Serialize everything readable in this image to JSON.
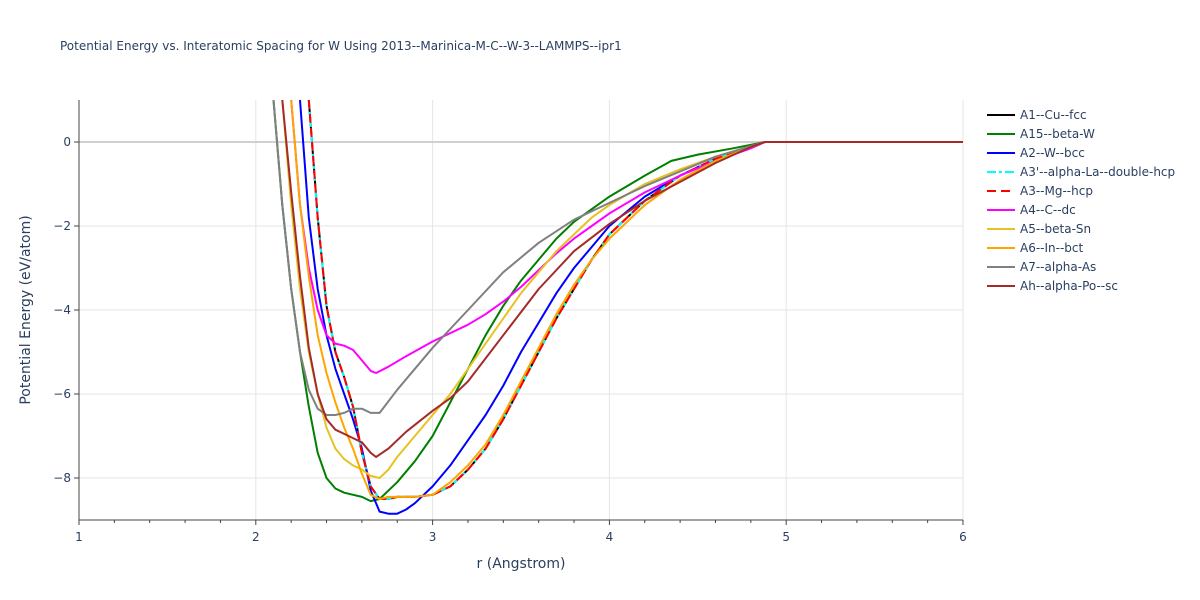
{
  "chart_data": {
    "type": "line",
    "title": "Potential Energy vs. Interatomic Spacing for W Using 2013--Marinica-M-C--W-3--LAMMPS--ipr1",
    "xlabel": "r (Angstrom)",
    "ylabel": "Potential Energy (eV/atom)",
    "xlim": [
      1,
      6
    ],
    "ylim": [
      -9,
      1
    ],
    "xticks": [
      1,
      2,
      3,
      4,
      5,
      6
    ],
    "yticks": [
      0,
      -2,
      -4,
      -6,
      -8
    ],
    "xtick_labels": [
      "1",
      "2",
      "3",
      "4",
      "5",
      "6"
    ],
    "ytick_labels": [
      "0",
      "−2",
      "−4",
      "−6",
      "−8"
    ],
    "grid": true,
    "legend_position": "right",
    "series": [
      {
        "name": "A1--Cu--fcc",
        "color": "#000000",
        "dash": "solid",
        "x": [
          2.3,
          2.35,
          2.4,
          2.45,
          2.5,
          2.55,
          2.6,
          2.65,
          2.7,
          2.75,
          2.8,
          2.9,
          3.0,
          3.1,
          3.2,
          3.3,
          3.4,
          3.5,
          3.6,
          3.7,
          3.8,
          3.9,
          4.0,
          4.2,
          4.4,
          4.6,
          4.8,
          4.88,
          5.0,
          5.5,
          6.0
        ],
        "y": [
          1.0,
          -1.8,
          -3.9,
          -5.0,
          -5.6,
          -6.3,
          -7.4,
          -8.2,
          -8.5,
          -8.5,
          -8.45,
          -8.45,
          -8.4,
          -8.2,
          -7.8,
          -7.3,
          -6.6,
          -5.8,
          -5.0,
          -4.2,
          -3.5,
          -2.8,
          -2.2,
          -1.4,
          -0.8,
          -0.4,
          -0.1,
          0.0,
          0.0,
          0.0,
          0.0
        ]
      },
      {
        "name": "A15--beta-W",
        "color": "#008000",
        "dash": "solid",
        "x": [
          2.1,
          2.15,
          2.2,
          2.25,
          2.3,
          2.35,
          2.4,
          2.45,
          2.5,
          2.6,
          2.65,
          2.7,
          2.8,
          2.9,
          3.0,
          3.1,
          3.2,
          3.3,
          3.4,
          3.5,
          3.6,
          3.7,
          3.8,
          3.9,
          4.0,
          4.1,
          4.2,
          4.35,
          4.5,
          4.7,
          4.88,
          5.0,
          5.5,
          6.0
        ],
        "y": [
          1.0,
          -1.5,
          -3.5,
          -5.0,
          -6.3,
          -7.4,
          -8.0,
          -8.25,
          -8.35,
          -8.45,
          -8.55,
          -8.5,
          -8.1,
          -7.6,
          -7.0,
          -6.2,
          -5.4,
          -4.6,
          -3.9,
          -3.3,
          -2.8,
          -2.3,
          -1.9,
          -1.6,
          -1.3,
          -1.05,
          -0.8,
          -0.45,
          -0.3,
          -0.15,
          0.0,
          0.0,
          0.0,
          0.0
        ]
      },
      {
        "name": "A2--W--bcc",
        "color": "#0000ff",
        "dash": "solid",
        "x": [
          2.25,
          2.3,
          2.35,
          2.4,
          2.45,
          2.5,
          2.55,
          2.6,
          2.65,
          2.7,
          2.75,
          2.8,
          2.85,
          2.9,
          3.0,
          3.1,
          3.2,
          3.3,
          3.4,
          3.5,
          3.6,
          3.7,
          3.8,
          3.9,
          4.0,
          4.2,
          4.4,
          4.6,
          4.8,
          4.88,
          5.0,
          5.5,
          6.0
        ],
        "y": [
          1.0,
          -1.8,
          -3.5,
          -4.6,
          -5.4,
          -6.0,
          -6.6,
          -7.3,
          -8.3,
          -8.8,
          -8.85,
          -8.85,
          -8.75,
          -8.6,
          -8.2,
          -7.7,
          -7.1,
          -6.5,
          -5.8,
          -5.0,
          -4.3,
          -3.6,
          -3.0,
          -2.5,
          -2.0,
          -1.3,
          -0.8,
          -0.4,
          -0.1,
          0.0,
          0.0,
          0.0,
          0.0
        ]
      },
      {
        "name": "A3'--alpha-La--double-hcp",
        "color": "#00ffff",
        "dash": "dashdot",
        "x": [
          2.3,
          2.35,
          2.4,
          2.45,
          2.5,
          2.55,
          2.6,
          2.65,
          2.7,
          2.75,
          2.8,
          2.9,
          3.0,
          3.1,
          3.2,
          3.3,
          3.4,
          3.5,
          3.6,
          3.7,
          3.8,
          3.9,
          4.0,
          4.2,
          4.4,
          4.6,
          4.8,
          4.88,
          5.0,
          5.5,
          6.0
        ],
        "y": [
          1.0,
          -1.8,
          -3.9,
          -5.0,
          -5.6,
          -6.3,
          -7.4,
          -8.2,
          -8.5,
          -8.5,
          -8.45,
          -8.45,
          -8.4,
          -8.2,
          -7.8,
          -7.3,
          -6.6,
          -5.8,
          -5.0,
          -4.2,
          -3.5,
          -2.8,
          -2.2,
          -1.4,
          -0.8,
          -0.4,
          -0.1,
          0.0,
          0.0,
          0.0,
          0.0
        ]
      },
      {
        "name": "A3--Mg--hcp",
        "color": "#ff0000",
        "dash": "dash",
        "x": [
          2.3,
          2.35,
          2.4,
          2.45,
          2.5,
          2.55,
          2.6,
          2.65,
          2.7,
          2.75,
          2.8,
          2.9,
          3.0,
          3.1,
          3.2,
          3.3,
          3.4,
          3.5,
          3.6,
          3.7,
          3.8,
          3.9,
          4.0,
          4.2,
          4.4,
          4.6,
          4.8,
          4.88,
          5.0,
          5.5,
          6.0
        ],
        "y": [
          1.0,
          -1.8,
          -3.9,
          -5.0,
          -5.6,
          -6.3,
          -7.4,
          -8.2,
          -8.5,
          -8.5,
          -8.45,
          -8.45,
          -8.4,
          -8.2,
          -7.8,
          -7.3,
          -6.6,
          -5.8,
          -5.0,
          -4.2,
          -3.5,
          -2.8,
          -2.2,
          -1.4,
          -0.8,
          -0.4,
          -0.1,
          0.0,
          0.0,
          0.0,
          0.0
        ]
      },
      {
        "name": "A4--C--dc",
        "color": "#ff00ff",
        "dash": "solid",
        "x": [
          2.2,
          2.25,
          2.3,
          2.35,
          2.4,
          2.45,
          2.5,
          2.55,
          2.6,
          2.65,
          2.68,
          2.75,
          2.85,
          3.0,
          3.1,
          3.2,
          3.3,
          3.4,
          3.5,
          3.6,
          3.7,
          3.8,
          3.9,
          4.0,
          4.2,
          4.4,
          4.6,
          4.8,
          4.88,
          5.0,
          5.5,
          6.0
        ],
        "y": [
          1.0,
          -1.5,
          -3.0,
          -4.0,
          -4.6,
          -4.8,
          -4.85,
          -4.95,
          -5.2,
          -5.45,
          -5.5,
          -5.35,
          -5.1,
          -4.75,
          -4.55,
          -4.35,
          -4.1,
          -3.8,
          -3.45,
          -3.05,
          -2.65,
          -2.3,
          -2.0,
          -1.7,
          -1.2,
          -0.8,
          -0.45,
          -0.15,
          0.0,
          0.0,
          0.0,
          0.0
        ]
      },
      {
        "name": "A5--beta-Sn",
        "color": "#e6c322",
        "dash": "solid",
        "x": [
          2.15,
          2.2,
          2.25,
          2.3,
          2.35,
          2.4,
          2.45,
          2.5,
          2.55,
          2.6,
          2.65,
          2.7,
          2.75,
          2.8,
          2.9,
          3.0,
          3.1,
          3.2,
          3.3,
          3.4,
          3.5,
          3.6,
          3.7,
          3.8,
          3.9,
          4.0,
          4.2,
          4.4,
          4.6,
          4.8,
          4.88,
          5.0,
          5.5,
          6.0
        ],
        "y": [
          1.0,
          -1.5,
          -3.5,
          -5.0,
          -6.0,
          -6.8,
          -7.3,
          -7.55,
          -7.7,
          -7.8,
          -7.95,
          -8.0,
          -7.8,
          -7.5,
          -7.0,
          -6.5,
          -6.0,
          -5.4,
          -4.8,
          -4.2,
          -3.6,
          -3.1,
          -2.6,
          -2.2,
          -1.8,
          -1.5,
          -1.0,
          -0.65,
          -0.35,
          -0.1,
          0.0,
          0.0,
          0.0,
          0.0
        ]
      },
      {
        "name": "A6--In--bct",
        "color": "#ffa500",
        "dash": "solid",
        "x": [
          2.2,
          2.25,
          2.3,
          2.35,
          2.4,
          2.45,
          2.5,
          2.55,
          2.6,
          2.65,
          2.7,
          2.75,
          2.8,
          2.9,
          3.0,
          3.1,
          3.2,
          3.3,
          3.4,
          3.5,
          3.6,
          3.7,
          3.8,
          3.9,
          4.0,
          4.2,
          4.4,
          4.6,
          4.8,
          4.88,
          5.0,
          5.5,
          6.0
        ],
        "y": [
          1.0,
          -1.5,
          -3.2,
          -4.6,
          -5.5,
          -6.2,
          -6.8,
          -7.3,
          -7.9,
          -8.4,
          -8.5,
          -8.45,
          -8.45,
          -8.45,
          -8.4,
          -8.1,
          -7.7,
          -7.2,
          -6.5,
          -5.7,
          -4.9,
          -4.1,
          -3.4,
          -2.8,
          -2.3,
          -1.5,
          -0.9,
          -0.45,
          -0.12,
          0.0,
          0.0,
          0.0,
          0.0
        ]
      },
      {
        "name": "A7--alpha-As",
        "color": "#808080",
        "dash": "solid",
        "x": [
          2.1,
          2.15,
          2.2,
          2.25,
          2.3,
          2.35,
          2.4,
          2.45,
          2.5,
          2.55,
          2.6,
          2.65,
          2.7,
          2.8,
          2.9,
          3.0,
          3.2,
          3.4,
          3.6,
          3.8,
          4.0,
          4.2,
          4.4,
          4.6,
          4.8,
          4.88,
          5.0,
          5.5,
          6.0
        ],
        "y": [
          1.0,
          -1.5,
          -3.5,
          -5.0,
          -5.9,
          -6.35,
          -6.5,
          -6.5,
          -6.45,
          -6.35,
          -6.35,
          -6.45,
          -6.45,
          -5.9,
          -5.4,
          -4.9,
          -4.0,
          -3.1,
          -2.4,
          -1.85,
          -1.45,
          -1.05,
          -0.7,
          -0.35,
          -0.1,
          0.0,
          0.0,
          0.0,
          0.0
        ]
      },
      {
        "name": "Ah--alpha-Po--sc",
        "color": "#a52a2a",
        "dash": "solid",
        "x": [
          2.15,
          2.2,
          2.25,
          2.3,
          2.35,
          2.4,
          2.45,
          2.5,
          2.55,
          2.6,
          2.65,
          2.68,
          2.75,
          2.85,
          3.0,
          3.1,
          3.2,
          3.4,
          3.6,
          3.8,
          4.0,
          4.2,
          4.4,
          4.6,
          4.8,
          4.88,
          5.0,
          5.5,
          6.0
        ],
        "y": [
          1.0,
          -1.2,
          -3.2,
          -4.9,
          -6.0,
          -6.6,
          -6.85,
          -6.95,
          -7.05,
          -7.15,
          -7.4,
          -7.5,
          -7.3,
          -6.9,
          -6.4,
          -6.1,
          -5.7,
          -4.6,
          -3.5,
          -2.6,
          -1.95,
          -1.4,
          -0.95,
          -0.5,
          -0.12,
          0.0,
          0.0,
          0.0,
          0.0
        ]
      }
    ]
  }
}
